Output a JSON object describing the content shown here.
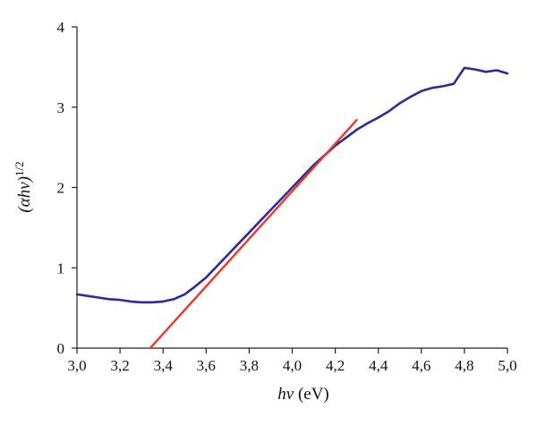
{
  "chart_data": {
    "type": "line",
    "title": "",
    "xlabel": {
      "main": "hν",
      "unit": " (eV)"
    },
    "ylabel": {
      "main": "(αhν)",
      "exponent": "1/2"
    },
    "xlim": [
      3.0,
      5.0
    ],
    "ylim": [
      0,
      4
    ],
    "x_ticks": [
      3.0,
      3.2,
      3.4,
      3.6,
      3.8,
      4.0,
      4.2,
      4.4,
      4.6,
      4.8,
      5.0
    ],
    "x_tick_labels": [
      "3,0",
      "3,2",
      "3,4",
      "3,6",
      "3,8",
      "4,0",
      "4,2",
      "4,4",
      "4,6",
      "4,8",
      "5,0"
    ],
    "y_ticks": [
      0,
      1,
      2,
      3,
      4
    ],
    "y_tick_labels": [
      "0",
      "1",
      "2",
      "3",
      "4"
    ],
    "grid": false,
    "legend": "none",
    "series": [
      {
        "color": "#2e2a9a",
        "x": [
          3.0,
          3.05,
          3.1,
          3.15,
          3.2,
          3.25,
          3.3,
          3.35,
          3.4,
          3.45,
          3.5,
          3.55,
          3.6,
          3.65,
          3.7,
          3.75,
          3.8,
          3.85,
          3.9,
          3.95,
          4.0,
          4.05,
          4.1,
          4.15,
          4.2,
          4.25,
          4.3,
          4.35,
          4.4,
          4.45,
          4.5,
          4.55,
          4.6,
          4.65,
          4.7,
          4.75,
          4.8,
          4.85,
          4.9,
          4.95,
          5.0
        ],
        "y": [
          0.67,
          0.65,
          0.63,
          0.61,
          0.6,
          0.58,
          0.57,
          0.57,
          0.58,
          0.61,
          0.67,
          0.77,
          0.88,
          1.02,
          1.16,
          1.3,
          1.44,
          1.58,
          1.72,
          1.86,
          2.0,
          2.14,
          2.28,
          2.4,
          2.52,
          2.62,
          2.72,
          2.8,
          2.87,
          2.95,
          3.05,
          3.13,
          3.2,
          3.24,
          3.26,
          3.29,
          3.49,
          3.47,
          3.44,
          3.46,
          3.42
        ]
      },
      {
        "color": "#e8392a",
        "x": [
          3.34,
          4.3
        ],
        "y": [
          0,
          2.84
        ]
      }
    ]
  }
}
